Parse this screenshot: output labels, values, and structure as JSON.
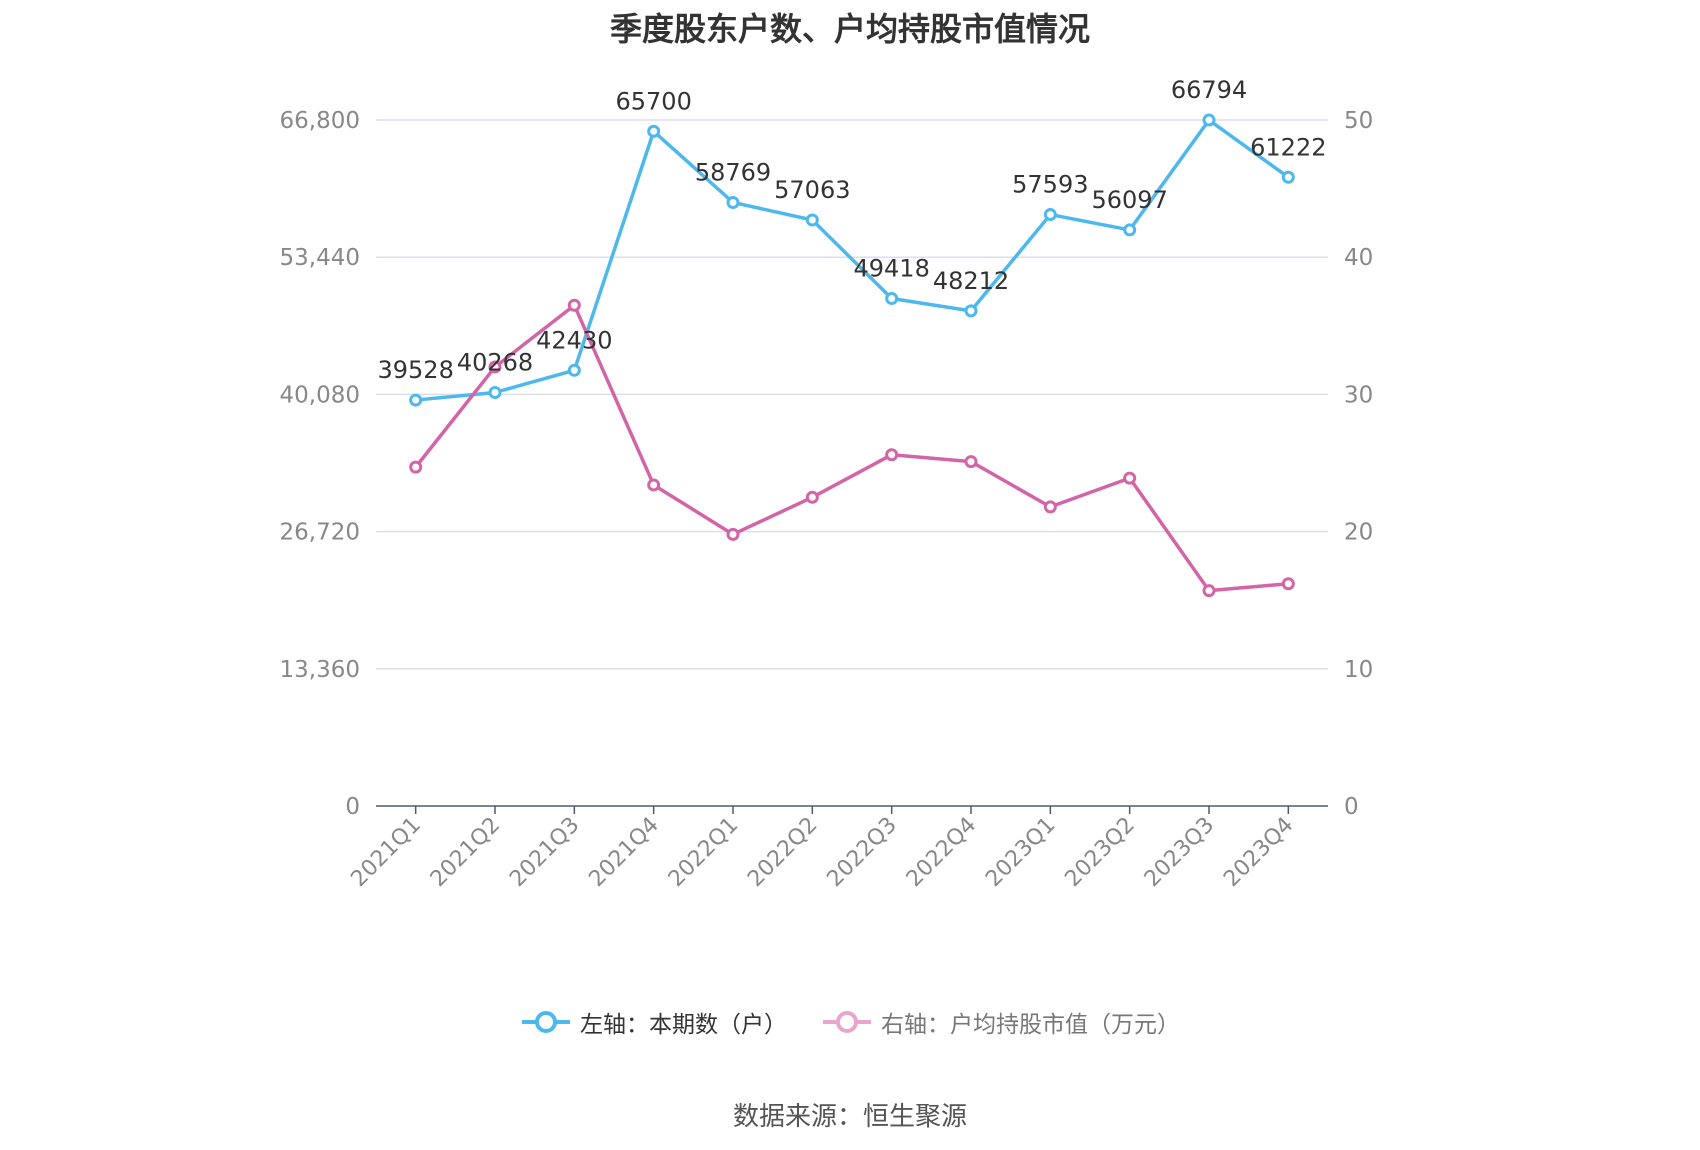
{
  "chart_data": {
    "type": "line",
    "title": "季度股东户数、户均持股市值情况",
    "categories": [
      "2021Q1",
      "2021Q2",
      "2021Q3",
      "2021Q4",
      "2022Q1",
      "2022Q2",
      "2022Q3",
      "2022Q4",
      "2023Q1",
      "2023Q2",
      "2023Q3",
      "2023Q4"
    ],
    "series": [
      {
        "name": "左轴：本期数（户）",
        "axis": "left",
        "color": "#4db8ed",
        "values": [
          39528,
          40268,
          42430,
          65700,
          58769,
          57063,
          49418,
          48212,
          57593,
          56097,
          66794,
          61222
        ],
        "labels": [
          "39528",
          "40268",
          "42430",
          "65700",
          "58769",
          "57063",
          "49418",
          "48212",
          "57593",
          "56097",
          "66794",
          "61222"
        ]
      },
      {
        "name": "右轴：户均持股市值（万元）",
        "axis": "right",
        "color": "#d364a8",
        "legend_color": "#e8a6cc",
        "values": [
          24.7,
          32.0,
          36.5,
          23.4,
          19.8,
          22.5,
          25.6,
          25.1,
          21.8,
          23.9,
          15.7,
          16.2
        ]
      }
    ],
    "y_left": {
      "ylim": [
        0,
        66800
      ],
      "ticks": [
        "0",
        "13,360",
        "26,720",
        "40,080",
        "53,440",
        "66,800"
      ]
    },
    "y_right": {
      "ylim": [
        0,
        50
      ],
      "ticks": [
        "0",
        "10",
        "20",
        "30",
        "40",
        "50"
      ]
    },
    "grid": true,
    "legend_position": "bottom"
  },
  "source": "数据来源：恒生聚源"
}
